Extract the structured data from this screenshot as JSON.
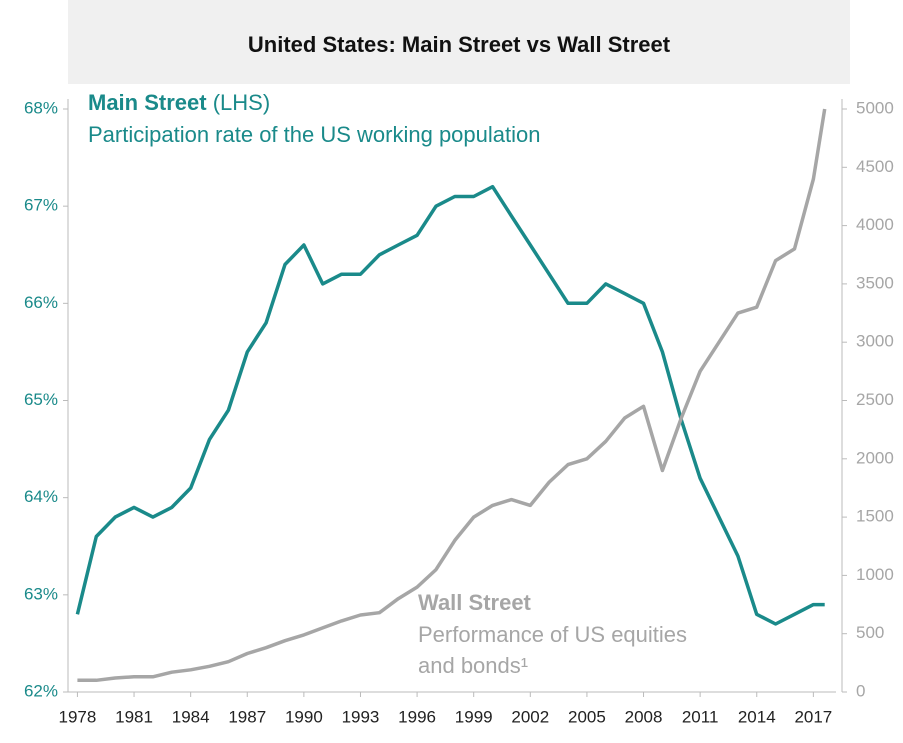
{
  "chart_data": {
    "type": "line",
    "title": "United States: Main Street vs Wall Street",
    "x": [
      1978,
      1979,
      1980,
      1981,
      1982,
      1983,
      1984,
      1985,
      1986,
      1987,
      1988,
      1989,
      1990,
      1991,
      1992,
      1993,
      1994,
      1995,
      1996,
      1997,
      1998,
      1999,
      2000,
      2001,
      2002,
      2003,
      2004,
      2005,
      2006,
      2007,
      2008,
      2009,
      2010,
      2011,
      2012,
      2013,
      2014,
      2015,
      2016,
      2017,
      2017.6
    ],
    "series": [
      {
        "name": "Main Street",
        "color": "#1a8a8a",
        "axis": "y",
        "values": [
          62.8,
          63.6,
          63.8,
          63.9,
          63.8,
          63.9,
          64.1,
          64.6,
          64.9,
          65.5,
          65.8,
          66.4,
          66.6,
          66.2,
          66.3,
          66.3,
          66.5,
          66.6,
          66.7,
          67.0,
          67.1,
          67.1,
          67.2,
          66.9,
          66.6,
          66.3,
          66.0,
          66.0,
          66.2,
          66.1,
          66.0,
          65.5,
          64.8,
          64.2,
          63.8,
          63.4,
          62.8,
          62.7,
          62.8,
          62.9,
          62.9
        ]
      },
      {
        "name": "Wall Street",
        "color": "#a6a6a6",
        "axis": "y2",
        "values": [
          100,
          100,
          120,
          130,
          130,
          170,
          190,
          220,
          260,
          330,
          380,
          440,
          490,
          550,
          610,
          660,
          680,
          800,
          900,
          1050,
          1300,
          1500,
          1600,
          1650,
          1600,
          1800,
          1950,
          2000,
          2150,
          2350,
          2450,
          1900,
          2350,
          2750,
          3000,
          3250,
          3300,
          3700,
          3800,
          4400,
          5000
        ]
      }
    ],
    "annotations": [
      "(LHS)",
      "Participation rate of the US working population",
      "Performance of US equities",
      "and bonds¹"
    ],
    "xlim": [
      1977.5,
      2018.2
    ],
    "xticks": [
      1978,
      1981,
      1984,
      1987,
      1990,
      1993,
      1996,
      1999,
      2002,
      2005,
      2008,
      2011,
      2014,
      2017
    ],
    "ylim": [
      62,
      68
    ],
    "yticks": [
      {
        "value": 62,
        "label": "62%"
      },
      {
        "value": 63,
        "label": "63%"
      },
      {
        "value": 64,
        "label": "64%"
      },
      {
        "value": 65,
        "label": "65%"
      },
      {
        "value": 66,
        "label": "66%"
      },
      {
        "value": 67,
        "label": "67%"
      },
      {
        "value": 68,
        "label": "68%"
      }
    ],
    "y2lim": [
      0,
      5000
    ],
    "y2ticks": [
      0,
      500,
      1000,
      1500,
      2000,
      2500,
      3000,
      3500,
      4000,
      4500,
      5000
    ]
  }
}
